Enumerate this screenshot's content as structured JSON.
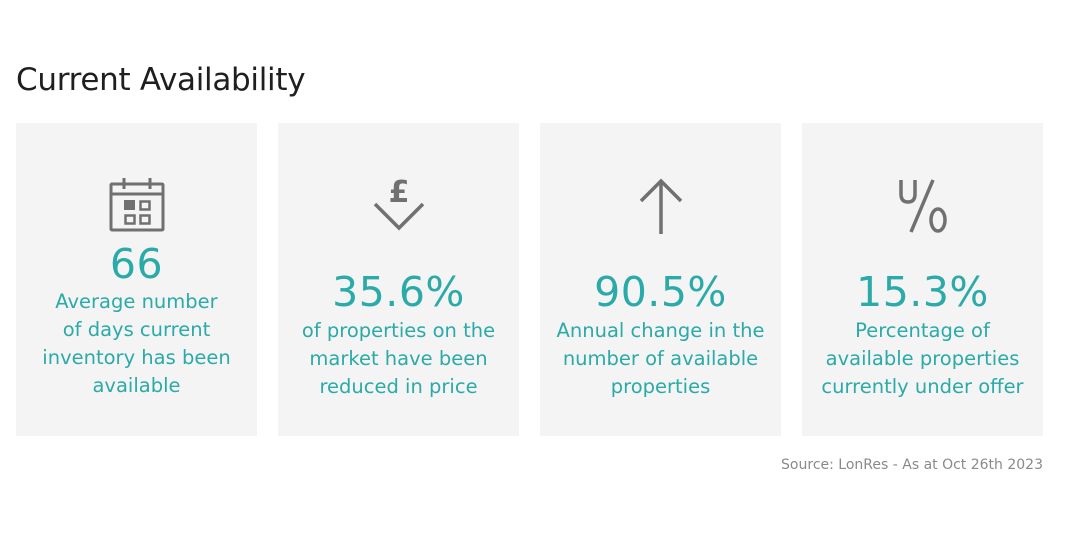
{
  "title": "Current Availability",
  "cards": [
    {
      "icon": "calendar-icon",
      "value": "66",
      "description": [
        "Average number",
        "of days current",
        "inventory has been",
        "available"
      ]
    },
    {
      "icon": "pound-down-arrow-icon",
      "value": "35.6%",
      "description": [
        "of properties on the",
        "market have been",
        "reduced in price"
      ]
    },
    {
      "icon": "up-arrow-icon",
      "value": "90.5%",
      "description": [
        "Annual change in the",
        "number of available",
        "properties"
      ]
    },
    {
      "icon": "percent-icon",
      "value": "15.3%",
      "description": [
        "Percentage of",
        "available properties",
        "currently under offer"
      ]
    }
  ],
  "source": "Source: LonRes - As at Oct 26th 2023",
  "colors": {
    "accent": "#2aaaa8",
    "card_background": "#f4f4f4",
    "icon": "#707070"
  }
}
